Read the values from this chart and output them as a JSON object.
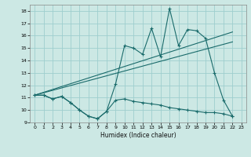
{
  "xlabel": "Humidex (Indice chaleur)",
  "bg_color": "#cce8e4",
  "grid_color": "#9ecece",
  "line_color": "#1a6b6b",
  "xlim": [
    -0.5,
    23.5
  ],
  "ylim": [
    9,
    18.5
  ],
  "yticks": [
    9,
    10,
    11,
    12,
    13,
    14,
    15,
    16,
    17,
    18
  ],
  "xticks": [
    0,
    1,
    2,
    3,
    4,
    5,
    6,
    7,
    8,
    9,
    10,
    11,
    12,
    13,
    14,
    15,
    16,
    17,
    18,
    19,
    20,
    21,
    22,
    23
  ],
  "upper_line_x": [
    0,
    1,
    2,
    3,
    4,
    5,
    6,
    7,
    8,
    9,
    10,
    11,
    12,
    13,
    14,
    15,
    16,
    17,
    18,
    19,
    20,
    21,
    22
  ],
  "upper_line_y": [
    11.2,
    11.2,
    10.9,
    11.1,
    10.6,
    10.0,
    9.5,
    9.3,
    9.9,
    12.1,
    15.2,
    15.0,
    14.5,
    16.6,
    14.3,
    18.2,
    15.2,
    16.5,
    16.4,
    15.8,
    13.0,
    10.8,
    9.5
  ],
  "trend1_x": [
    0,
    22
  ],
  "trend1_y": [
    11.2,
    16.3
  ],
  "trend2_x": [
    0,
    22
  ],
  "trend2_y": [
    11.2,
    15.5
  ],
  "lower_line_x": [
    0,
    1,
    2,
    3,
    4,
    5,
    6,
    7,
    8,
    9,
    10,
    11,
    12,
    13,
    14,
    15,
    16,
    17,
    18,
    19,
    20,
    21,
    22
  ],
  "lower_line_y": [
    11.2,
    11.2,
    10.9,
    11.1,
    10.6,
    10.0,
    9.5,
    9.3,
    9.9,
    10.8,
    10.9,
    10.7,
    10.6,
    10.5,
    10.4,
    10.2,
    10.1,
    10.0,
    9.9,
    9.8,
    9.8,
    9.7,
    9.5
  ]
}
